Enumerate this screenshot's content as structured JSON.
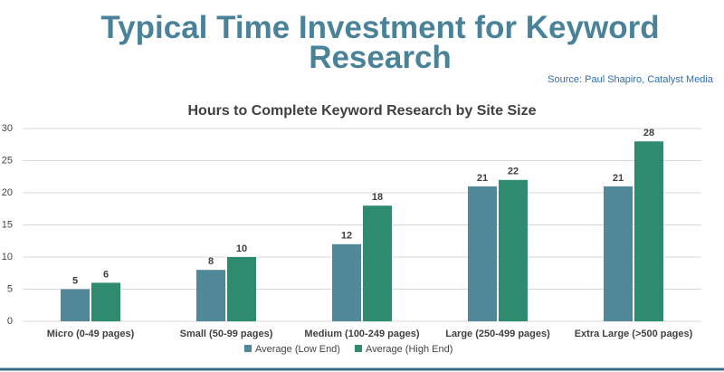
{
  "chart_data": {
    "type": "bar",
    "page_title": "Typical Time Investment for Keyword Research",
    "source": "Source:  Paul Shapiro, Catalyst Media",
    "title": "Hours to Complete Keyword Research by Site Size",
    "categories": [
      "Micro (0-49 pages)",
      "Small (50-99 pages)",
      "Medium (100-249 pages)",
      "Large (250-499 pages)",
      "Extra Large (>500 pages)"
    ],
    "series": [
      {
        "name": "Average (Low End)",
        "color": "#518899",
        "values": [
          5,
          8,
          12,
          21,
          21
        ]
      },
      {
        "name": "Average (High End)",
        "color": "#2e8b70",
        "values": [
          6,
          10,
          18,
          22,
          28
        ]
      }
    ],
    "ylim": [
      0,
      30
    ],
    "yticks": [
      0,
      5,
      10,
      15,
      20,
      25,
      30
    ],
    "grid": true,
    "legend": "bottom"
  }
}
